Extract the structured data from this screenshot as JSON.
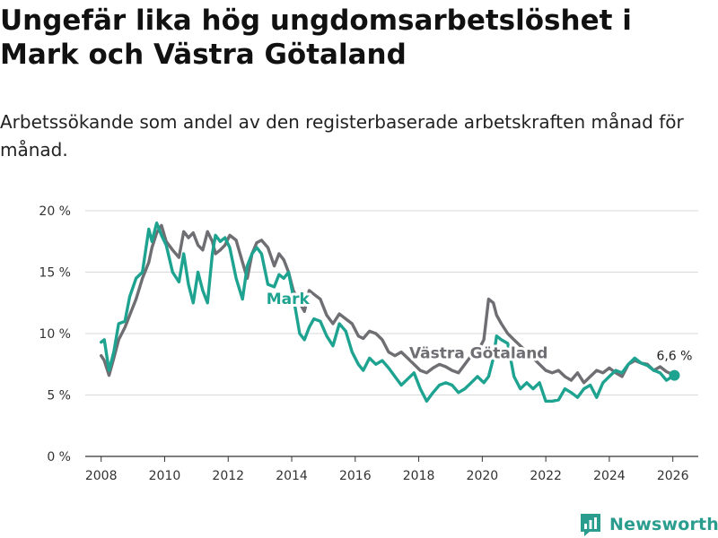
{
  "title": "Ungefär lika hög ungdomsarbetslöshet i Mark och Västra Götaland",
  "subtitle": "Arbetssökande som andel av den registerbaserade arbetskraften månad för månad.",
  "brand": {
    "name": "Newsworthy",
    "color": "#2a9d8f"
  },
  "chart_data": {
    "type": "line",
    "title": "Ungefär lika hög ungdomsarbetslöshet i Mark och Västra Götaland",
    "xlabel": "",
    "ylabel": "",
    "xlim": [
      2007.5,
      2026.8
    ],
    "ylim": [
      0,
      20
    ],
    "x_ticks": [
      2008,
      2010,
      2012,
      2014,
      2016,
      2018,
      2020,
      2022,
      2024,
      2026
    ],
    "x_tick_labels": [
      "2008",
      "2010",
      "2012",
      "2014",
      "2016",
      "2018",
      "2020",
      "2022",
      "2024",
      "2026"
    ],
    "y_ticks": [
      0,
      5,
      10,
      15,
      20
    ],
    "y_tick_labels": [
      "0 %",
      "5 %",
      "10 %",
      "15 %",
      "20 %"
    ],
    "grid": true,
    "end_label": "6,6 %",
    "series": [
      {
        "name": "Västra Götaland",
        "label": "Västra Götaland",
        "color": "#6e6e73",
        "x": [
          2008.0,
          2008.1,
          2008.25,
          2008.4,
          2008.55,
          2008.75,
          2008.9,
          2009.1,
          2009.3,
          2009.5,
          2009.6,
          2009.75,
          2009.9,
          2010.05,
          2010.25,
          2010.45,
          2010.6,
          2010.75,
          2010.9,
          2011.05,
          2011.2,
          2011.35,
          2011.5,
          2011.6,
          2011.75,
          2011.9,
          2012.05,
          2012.25,
          2012.45,
          2012.6,
          2012.75,
          2012.9,
          2013.05,
          2013.25,
          2013.45,
          2013.6,
          2013.75,
          2013.9,
          2014.05,
          2014.25,
          2014.4,
          2014.55,
          2014.7,
          2014.9,
          2015.1,
          2015.3,
          2015.5,
          2015.7,
          2015.9,
          2016.1,
          2016.25,
          2016.45,
          2016.65,
          2016.85,
          2017.05,
          2017.25,
          2017.45,
          2017.65,
          2017.85,
          2018.05,
          2018.25,
          2018.45,
          2018.65,
          2018.85,
          2019.05,
          2019.25,
          2019.45,
          2019.65,
          2019.85,
          2020.05,
          2020.2,
          2020.35,
          2020.45,
          2020.6,
          2020.8,
          2021.0,
          2021.2,
          2021.4,
          2021.6,
          2021.8,
          2022.0,
          2022.2,
          2022.4,
          2022.6,
          2022.8,
          2023.0,
          2023.2,
          2023.4,
          2023.6,
          2023.8,
          2024.0,
          2024.2,
          2024.4,
          2024.6,
          2024.8,
          2025.0,
          2025.2,
          2025.4,
          2025.6,
          2025.8,
          2026.05
        ],
        "y": [
          8.2,
          7.8,
          6.6,
          8.0,
          9.5,
          10.5,
          11.5,
          12.8,
          14.5,
          15.8,
          17.0,
          18.2,
          18.8,
          17.5,
          16.8,
          16.2,
          18.3,
          17.8,
          18.2,
          17.2,
          16.8,
          18.3,
          17.5,
          16.5,
          16.8,
          17.2,
          18.0,
          17.6,
          15.8,
          14.5,
          16.5,
          17.4,
          17.6,
          17.0,
          15.5,
          16.5,
          16.0,
          15.0,
          13.5,
          12.5,
          11.8,
          13.5,
          13.2,
          12.8,
          11.5,
          10.8,
          11.6,
          11.2,
          10.8,
          9.8,
          9.6,
          10.2,
          10.0,
          9.5,
          8.5,
          8.2,
          8.5,
          8.0,
          7.5,
          7.0,
          6.8,
          7.2,
          7.5,
          7.3,
          7.0,
          6.8,
          7.5,
          8.2,
          8.5,
          9.5,
          12.8,
          12.5,
          11.5,
          10.8,
          10.0,
          9.5,
          9.0,
          8.5,
          8.0,
          7.5,
          7.0,
          6.8,
          7.0,
          6.5,
          6.2,
          6.8,
          6.0,
          6.5,
          7.0,
          6.8,
          7.2,
          6.8,
          6.5,
          7.5,
          7.8,
          7.6,
          7.5,
          7.0,
          7.3,
          6.9,
          6.6
        ]
      },
      {
        "name": "Mark",
        "label": "Mark",
        "color": "#1fa391",
        "x": [
          2008.0,
          2008.1,
          2008.25,
          2008.4,
          2008.55,
          2008.75,
          2008.9,
          2009.1,
          2009.3,
          2009.5,
          2009.6,
          2009.75,
          2009.9,
          2010.05,
          2010.25,
          2010.45,
          2010.6,
          2010.75,
          2010.9,
          2011.05,
          2011.2,
          2011.35,
          2011.5,
          2011.6,
          2011.75,
          2011.9,
          2012.05,
          2012.25,
          2012.45,
          2012.6,
          2012.75,
          2012.9,
          2013.05,
          2013.25,
          2013.45,
          2013.6,
          2013.75,
          2013.9,
          2014.05,
          2014.25,
          2014.4,
          2014.55,
          2014.7,
          2014.9,
          2015.1,
          2015.3,
          2015.5,
          2015.7,
          2015.9,
          2016.1,
          2016.25,
          2016.45,
          2016.65,
          2016.85,
          2017.05,
          2017.25,
          2017.45,
          2017.65,
          2017.85,
          2018.05,
          2018.25,
          2018.45,
          2018.65,
          2018.85,
          2019.05,
          2019.25,
          2019.45,
          2019.65,
          2019.85,
          2020.05,
          2020.2,
          2020.35,
          2020.45,
          2020.6,
          2020.8,
          2021.0,
          2021.2,
          2021.4,
          2021.6,
          2021.8,
          2022.0,
          2022.2,
          2022.4,
          2022.6,
          2022.8,
          2023.0,
          2023.2,
          2023.4,
          2023.6,
          2023.8,
          2024.0,
          2024.2,
          2024.4,
          2024.6,
          2024.8,
          2025.0,
          2025.2,
          2025.4,
          2025.6,
          2025.8,
          2026.05
        ],
        "y": [
          9.3,
          9.5,
          7.0,
          8.5,
          10.8,
          11.0,
          13.0,
          14.5,
          15.0,
          18.5,
          17.5,
          19.0,
          18.0,
          17.2,
          15.0,
          14.2,
          16.5,
          14.0,
          12.5,
          15.0,
          13.5,
          12.5,
          16.5,
          18.0,
          17.5,
          17.8,
          17.0,
          14.5,
          12.8,
          15.5,
          16.5,
          17.0,
          16.5,
          14.0,
          13.8,
          14.8,
          14.5,
          15.0,
          13.0,
          10.0,
          9.5,
          10.5,
          11.2,
          11.0,
          9.8,
          9.0,
          10.8,
          10.2,
          8.5,
          7.5,
          7.0,
          8.0,
          7.5,
          7.8,
          7.2,
          6.5,
          5.8,
          6.3,
          6.8,
          5.5,
          4.5,
          5.2,
          5.8,
          6.0,
          5.8,
          5.2,
          5.5,
          6.0,
          6.5,
          6.0,
          6.5,
          8.0,
          9.8,
          9.5,
          9.2,
          6.5,
          5.5,
          6.0,
          5.5,
          6.0,
          4.5,
          4.5,
          4.6,
          5.5,
          5.2,
          4.8,
          5.5,
          5.8,
          4.8,
          6.0,
          6.5,
          7.0,
          6.8,
          7.5,
          8.0,
          7.6,
          7.4,
          7.0,
          6.8,
          6.2,
          6.6
        ]
      }
    ]
  }
}
